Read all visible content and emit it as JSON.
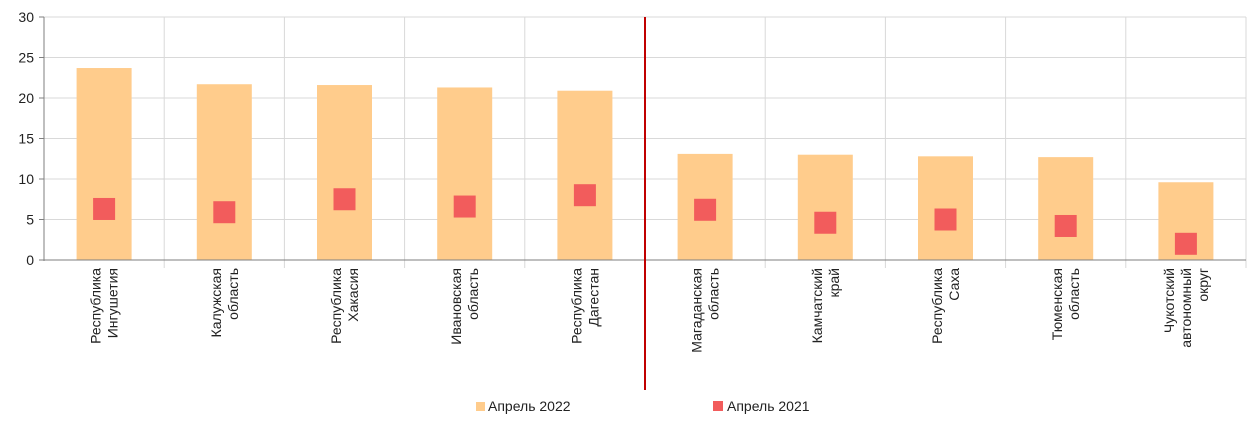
{
  "chart_data": {
    "type": "bar",
    "categories": [
      [
        "Республика",
        "Ингушетия"
      ],
      [
        "Калужская",
        "область"
      ],
      [
        "Республика",
        "Хакасия"
      ],
      [
        "Ивановская",
        "область"
      ],
      [
        "Республика",
        "Дагестан"
      ],
      [
        "Магаданская",
        "область"
      ],
      [
        "Камчатский",
        "край"
      ],
      [
        "Республика",
        "Саха"
      ],
      [
        "Тюменская",
        "область"
      ],
      [
        "Чукотский",
        "автономный",
        "округ"
      ]
    ],
    "series": [
      {
        "name": "Апрель 2022",
        "marker": "bar",
        "color": "#FFCC8C",
        "values": [
          23.7,
          21.7,
          21.6,
          21.3,
          20.9,
          13.1,
          13.0,
          12.8,
          12.7,
          9.6
        ]
      },
      {
        "name": "Апрель 2021",
        "marker": "square",
        "color": "#F25C5C",
        "values": [
          6.3,
          5.9,
          7.5,
          6.6,
          8.0,
          6.2,
          4.6,
          5.0,
          4.2,
          2.0
        ]
      }
    ],
    "ylim": [
      0,
      30
    ],
    "yticks": [
      0,
      5,
      10,
      15,
      20,
      25,
      30
    ],
    "grid": true,
    "divider_after_index": 4,
    "divider_color": "#C00000",
    "legend_position": "bottom"
  }
}
